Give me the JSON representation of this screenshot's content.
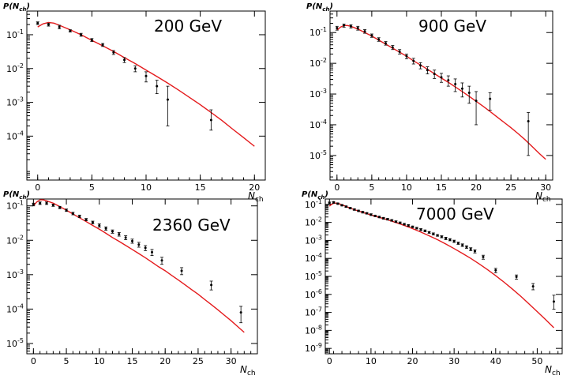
{
  "chart_data": [
    {
      "type": "scatter",
      "title": "200 GeV",
      "ylabel": "P(N_ch)",
      "xlabel": "N_ch",
      "xlim": [
        -1,
        21
      ],
      "ylim_log10": [
        -5.3,
        -0.3
      ],
      "yscale": "log",
      "xticks": [
        0,
        5,
        10,
        15,
        20
      ],
      "ytick_exponents": [
        -1,
        -2,
        -3,
        -4
      ],
      "series": [
        {
          "kind": "points",
          "color": "#000000",
          "x": [
            0,
            1,
            2,
            3,
            4,
            5,
            6,
            7,
            8,
            9,
            10,
            11,
            12,
            16
          ],
          "y": [
            0.22,
            0.2,
            0.17,
            0.13,
            0.1,
            0.07,
            0.05,
            0.03,
            0.018,
            0.01,
            0.006,
            0.003,
            0.0012,
            0.0003
          ],
          "err_low": [
            0.2,
            0.18,
            0.15,
            0.12,
            0.09,
            0.063,
            0.045,
            0.026,
            0.015,
            0.008,
            0.004,
            0.0018,
            0.0002,
            0.00015
          ],
          "err_high": [
            0.24,
            0.22,
            0.19,
            0.14,
            0.11,
            0.077,
            0.055,
            0.034,
            0.021,
            0.012,
            0.008,
            0.0045,
            0.003,
            0.0006
          ]
        },
        {
          "kind": "curve",
          "color": "#e41a1c",
          "x": [
            0,
            0.5,
            1,
            1.5,
            2,
            3,
            4,
            5,
            6,
            7,
            8,
            9,
            10,
            11,
            12,
            13,
            14,
            15,
            16,
            17,
            18,
            19,
            20
          ],
          "y": [
            0.17,
            0.21,
            0.23,
            0.22,
            0.19,
            0.14,
            0.1,
            0.068,
            0.047,
            0.032,
            0.021,
            0.014,
            0.009,
            0.0058,
            0.0037,
            0.0023,
            0.0014,
            0.00085,
            0.0005,
            0.00029,
            0.00016,
            9e-05,
            5e-05
          ]
        }
      ]
    },
    {
      "type": "scatter",
      "title": "900 GeV",
      "ylabel": "P(N_ch)",
      "xlabel": "N_ch",
      "xlim": [
        -1,
        31
      ],
      "ylim_log10": [
        -5.8,
        -0.3
      ],
      "yscale": "log",
      "xticks": [
        0,
        5,
        10,
        15,
        20,
        25,
        30
      ],
      "ytick_exponents": [
        -1,
        -2,
        -3,
        -4,
        -5
      ],
      "series": [
        {
          "kind": "points",
          "color": "#000000",
          "x": [
            0,
            1,
            2,
            3,
            4,
            5,
            6,
            7,
            8,
            9,
            10,
            11,
            12,
            13,
            14,
            15,
            16,
            17,
            18,
            19,
            20,
            22,
            27.5
          ],
          "y": [
            0.14,
            0.17,
            0.16,
            0.14,
            0.11,
            0.08,
            0.06,
            0.045,
            0.033,
            0.024,
            0.017,
            0.012,
            0.0085,
            0.006,
            0.0045,
            0.0035,
            0.0028,
            0.0021,
            0.0015,
            0.0011,
            0.0006,
            0.0007,
            0.00013
          ],
          "err_low": [
            0.12,
            0.15,
            0.14,
            0.12,
            0.095,
            0.07,
            0.052,
            0.039,
            0.028,
            0.02,
            0.014,
            0.0095,
            0.0066,
            0.0045,
            0.0032,
            0.0024,
            0.0018,
            0.0012,
            0.0008,
            0.0005,
            0.0001,
            0.0003,
            1e-05
          ],
          "err_high": [
            0.16,
            0.19,
            0.18,
            0.16,
            0.125,
            0.09,
            0.068,
            0.051,
            0.038,
            0.028,
            0.02,
            0.0145,
            0.0105,
            0.0077,
            0.006,
            0.0047,
            0.0039,
            0.0031,
            0.0023,
            0.0018,
            0.0012,
            0.0011,
            0.00025
          ]
        },
        {
          "kind": "curve",
          "color": "#e41a1c",
          "x": [
            0,
            0.5,
            1,
            1.5,
            2,
            3,
            4,
            5,
            6,
            7,
            8,
            9,
            10,
            11,
            12,
            13,
            14,
            15,
            16,
            17,
            18,
            19,
            20,
            21,
            22,
            23,
            24,
            25,
            26,
            27,
            28,
            29,
            30
          ],
          "y": [
            0.12,
            0.15,
            0.17,
            0.17,
            0.16,
            0.13,
            0.1,
            0.077,
            0.057,
            0.042,
            0.031,
            0.023,
            0.017,
            0.012,
            0.0088,
            0.0064,
            0.0046,
            0.0033,
            0.0024,
            0.0017,
            0.0012,
            0.00084,
            0.00058,
            0.0004,
            0.00027,
            0.00018,
            0.00012,
            8e-05,
            5.2e-05,
            3.3e-05,
            2e-05,
            1.2e-05,
            7.5e-06
          ]
        }
      ]
    },
    {
      "type": "scatter",
      "title": "2360 GeV",
      "ylabel": "P(N_ch)",
      "xlabel": "N_ch",
      "xlim": [
        -1,
        34
      ],
      "ylim_log10": [
        -5.3,
        -0.8
      ],
      "yscale": "log",
      "xticks": [
        0,
        5,
        10,
        15,
        20,
        25,
        30
      ],
      "ytick_exponents": [
        -1,
        -2,
        -3,
        -4,
        -5
      ],
      "series": [
        {
          "kind": "points",
          "color": "#000000",
          "x": [
            0,
            1,
            2,
            3,
            4,
            5,
            6,
            7,
            8,
            9,
            10,
            11,
            12,
            13,
            14,
            15,
            16,
            17,
            18,
            19.5,
            22.5,
            27,
            31.5
          ],
          "y": [
            0.11,
            0.12,
            0.12,
            0.105,
            0.09,
            0.075,
            0.06,
            0.05,
            0.04,
            0.033,
            0.027,
            0.022,
            0.018,
            0.015,
            0.012,
            0.0095,
            0.0075,
            0.006,
            0.0045,
            0.0026,
            0.0013,
            0.0005,
            8e-05
          ],
          "err_low": [
            0.1,
            0.11,
            0.11,
            0.097,
            0.083,
            0.069,
            0.055,
            0.046,
            0.037,
            0.03,
            0.024,
            0.0195,
            0.016,
            0.0132,
            0.0104,
            0.0082,
            0.0063,
            0.005,
            0.0036,
            0.002,
            0.001,
            0.00036,
            4e-05
          ],
          "err_high": [
            0.12,
            0.13,
            0.13,
            0.113,
            0.097,
            0.081,
            0.065,
            0.054,
            0.043,
            0.036,
            0.03,
            0.0245,
            0.02,
            0.0168,
            0.0136,
            0.0108,
            0.0087,
            0.007,
            0.0054,
            0.0032,
            0.0016,
            0.00065,
            0.00012
          ]
        },
        {
          "kind": "curve",
          "color": "#e41a1c",
          "x": [
            0,
            0.5,
            1,
            1.5,
            2,
            3,
            4,
            5,
            6,
            7,
            8,
            9,
            10,
            11,
            12,
            13,
            14,
            15,
            16,
            17,
            18,
            19,
            20,
            21,
            22,
            23,
            24,
            25,
            26,
            27,
            28,
            29,
            30,
            31,
            32
          ],
          "y": [
            0.1,
            0.13,
            0.15,
            0.15,
            0.14,
            0.12,
            0.095,
            0.075,
            0.058,
            0.045,
            0.035,
            0.027,
            0.021,
            0.016,
            0.012,
            0.0093,
            0.0071,
            0.0054,
            0.0041,
            0.0031,
            0.0023,
            0.0017,
            0.0013,
            0.00095,
            0.0007,
            0.00051,
            0.00037,
            0.00027,
            0.00019,
            0.000135,
            9.5e-05,
            6.6e-05,
            4.6e-05,
            3.1e-05,
            2.1e-05
          ]
        }
      ]
    },
    {
      "type": "scatter",
      "title": "7000 GeV",
      "ylabel": "P(N_ch)",
      "xlabel": "N_ch",
      "xlim": [
        -1,
        56
      ],
      "ylim_log10": [
        -9.3,
        -0.7
      ],
      "yscale": "log",
      "xticks": [
        0,
        10,
        20,
        30,
        40,
        50
      ],
      "ytick_exponents": [
        -1,
        -2,
        -3,
        -4,
        -5,
        -6,
        -7,
        -8,
        -9
      ],
      "series": [
        {
          "kind": "points",
          "color": "#000000",
          "x": [
            0,
            1,
            2,
            3,
            4,
            5,
            6,
            7,
            8,
            9,
            10,
            11,
            12,
            13,
            14,
            15,
            16,
            17,
            18,
            19,
            20,
            21,
            22,
            23,
            24,
            25,
            26,
            27,
            28,
            29,
            30,
            31,
            32,
            33,
            34,
            35,
            37,
            40,
            45,
            49,
            54
          ],
          "y": [
            0.12,
            0.13,
            0.11,
            0.09,
            0.075,
            0.062,
            0.052,
            0.044,
            0.037,
            0.032,
            0.027,
            0.023,
            0.02,
            0.017,
            0.015,
            0.013,
            0.011,
            0.0095,
            0.008,
            0.0068,
            0.0057,
            0.0048,
            0.004,
            0.0034,
            0.0028,
            0.0023,
            0.0019,
            0.0016,
            0.0013,
            0.0011,
            0.0009,
            0.0007,
            0.00055,
            0.00043,
            0.00033,
            0.00025,
            0.00012,
            2.2e-05,
            9.5e-06,
            2.8e-06,
            4e-07
          ],
          "err_low": [
            0.105,
            0.115,
            0.1,
            0.082,
            0.068,
            0.056,
            0.047,
            0.04,
            0.033,
            0.029,
            0.024,
            0.021,
            0.018,
            0.015,
            0.0135,
            0.0117,
            0.0099,
            0.0085,
            0.0072,
            0.006,
            0.0051,
            0.0043,
            0.0035,
            0.003,
            0.0025,
            0.002,
            0.0017,
            0.0014,
            0.0011,
            0.00095,
            0.00077,
            0.0006,
            0.00046,
            0.00036,
            0.00027,
            0.0002,
            9e-05,
            1.6e-05,
            7e-06,
            1.8e-06,
            1.5e-07
          ],
          "err_high": [
            0.135,
            0.145,
            0.12,
            0.098,
            0.082,
            0.068,
            0.057,
            0.048,
            0.041,
            0.035,
            0.03,
            0.025,
            0.022,
            0.019,
            0.0165,
            0.0143,
            0.0121,
            0.0105,
            0.0088,
            0.0076,
            0.0063,
            0.0053,
            0.0045,
            0.0038,
            0.0031,
            0.0026,
            0.0021,
            0.0018,
            0.0015,
            0.00125,
            0.00103,
            0.0008,
            0.00064,
            0.0005,
            0.00039,
            0.0003,
            0.00015,
            2.8e-05,
            1.2e-05,
            4e-06,
            9e-07
          ]
        },
        {
          "kind": "curve",
          "color": "#e41a1c",
          "x": [
            0,
            0.5,
            1,
            1.5,
            2,
            3,
            4,
            5,
            6,
            8,
            10,
            12,
            14,
            16,
            18,
            20,
            22,
            24,
            26,
            28,
            30,
            32,
            34,
            36,
            38,
            40,
            42,
            44,
            46,
            48,
            50,
            52,
            54
          ],
          "y": [
            0.08,
            0.1,
            0.115,
            0.12,
            0.115,
            0.095,
            0.077,
            0.062,
            0.051,
            0.036,
            0.026,
            0.019,
            0.014,
            0.0098,
            0.0068,
            0.0045,
            0.0029,
            0.0018,
            0.0011,
            0.00063,
            0.00035,
            0.00019,
            0.0001,
            5e-05,
            2.4e-05,
            1.1e-05,
            4.8e-06,
            2e-06,
            8e-07,
            3e-07,
            1.1e-07,
            4e-08,
            1.4e-08
          ]
        }
      ]
    }
  ]
}
